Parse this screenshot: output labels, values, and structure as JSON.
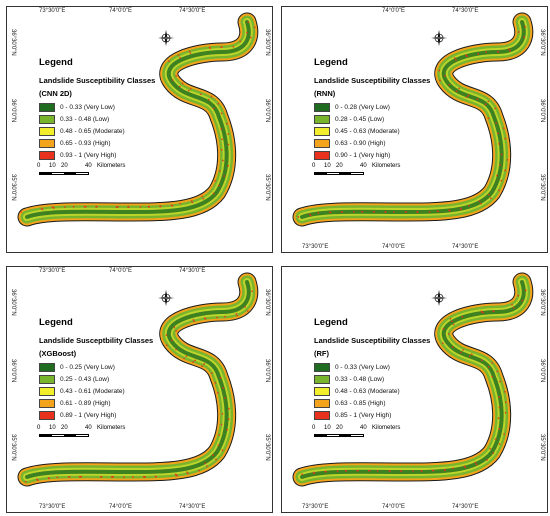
{
  "map_style": {
    "colors": {
      "very_low": "#1f6b1f",
      "low": "#79b52c",
      "moderate": "#f2ee2b",
      "high": "#f4a41c",
      "very_high": "#e8321e",
      "outline": "#1a1a1a"
    }
  },
  "compass": {
    "icon": "north-arrow-compass-icon",
    "label": "N"
  },
  "panels": [
    {
      "legend_title": "Legend",
      "legend_subtitle": "Landslide Susceptibility Classes",
      "model": "(CNN 2D)",
      "classes": [
        {
          "label": "0 - 0.33 (Very Low)",
          "color": "#1f6b1f"
        },
        {
          "label": "0.33 - 0.48 (Low)",
          "color": "#79b52c"
        },
        {
          "label": "0.48 - 0.65 (Moderate)",
          "color": "#f2ee2b"
        },
        {
          "label": "0.65 - 0.93 (High)",
          "color": "#f4a41c"
        },
        {
          "label": "0.93 - 1 (Very High)",
          "color": "#e8321e"
        }
      ],
      "scale": {
        "ticks": [
          "0",
          "10",
          "20",
          "40"
        ],
        "unit": "Kilometers"
      },
      "top_ticks": [
        "73°30'0\"E",
        "74°0'0\"E",
        "74°30'0\"E"
      ],
      "right_ticks": [
        "36°30'0\"N",
        "36°0'0\"N",
        "35°30'0\"N"
      ],
      "left_ticks": [
        "36°30'0\"N",
        "36°0'0\"N",
        "35°30'0\"N"
      ],
      "bottom_ticks": []
    },
    {
      "legend_title": "Legend",
      "legend_subtitle": "Landslide Susceptibility Classes",
      "model": "(RNN)",
      "classes": [
        {
          "label": "0 - 0.28 (Very Low)",
          "color": "#1f6b1f"
        },
        {
          "label": "0.28 - 0.45 (Low)",
          "color": "#79b52c"
        },
        {
          "label": "0.45 - 0.63 (Moderate)",
          "color": "#f2ee2b"
        },
        {
          "label": "0.63 - 0.90 (High)",
          "color": "#f4a41c"
        },
        {
          "label": "0.90 - 1 (Very high)",
          "color": "#e8321e"
        }
      ],
      "scale": {
        "ticks": [
          "0",
          "10",
          "20",
          "40"
        ],
        "unit": "Kilometers"
      },
      "top_ticks": [
        "74°0'0\"E",
        "74°30'0\"E"
      ],
      "right_ticks": [
        "36°30'0\"N",
        "36°0'0\"N",
        "35°30'0\"N"
      ],
      "left_ticks": [],
      "bottom_ticks": [
        "73°30'0\"E",
        "74°0'0\"E",
        "74°30'0\"E"
      ]
    },
    {
      "legend_title": "Legend",
      "legend_subtitle": "Landslide Susceptbility Classes",
      "model": "(XGBoost)",
      "classes": [
        {
          "label": "0 - 0.25 (Very Low)",
          "color": "#1f6b1f"
        },
        {
          "label": "0.25 - 0.43 (Low)",
          "color": "#79b52c"
        },
        {
          "label": "0.43 - 0.61 (Moderate)",
          "color": "#f2ee2b"
        },
        {
          "label": "0.61 - 0.89 (High)",
          "color": "#f4a41c"
        },
        {
          "label": "0.89 - 1 (Very High)",
          "color": "#e8321e"
        }
      ],
      "scale": {
        "ticks": [
          "0",
          "10",
          "20",
          "40"
        ],
        "unit": "Kilometers"
      },
      "top_ticks": [
        "73°30'0\"E",
        "74°0'0\"E",
        "74°30'0\"E"
      ],
      "right_ticks": [
        "36°30'0\"N",
        "36°0'0\"N",
        "35°30'0\"N"
      ],
      "left_ticks": [
        "36°30'0\"N",
        "36°0'0\"N",
        "35°30'0\"N"
      ],
      "bottom_ticks": [
        "73°30'0\"E",
        "74°0'0\"E",
        "74°30'0\"E"
      ]
    },
    {
      "legend_title": "Legend",
      "legend_subtitle": "Landslide Susceptibility Classes",
      "model": "(RF)",
      "classes": [
        {
          "label": "0 - 0.33 (Very Low)",
          "color": "#1f6b1f"
        },
        {
          "label": "0.33 - 0.48 (Low)",
          "color": "#79b52c"
        },
        {
          "label": "0.48 - 0.63 (Moderate)",
          "color": "#f2ee2b"
        },
        {
          "label": "0.63 - 0.85 (High)",
          "color": "#f4a41c"
        },
        {
          "label": "0.85 - 1 (Very High)",
          "color": "#e8321e"
        }
      ],
      "scale": {
        "ticks": [
          "0",
          "10",
          "20",
          "40"
        ],
        "unit": "Kilometers"
      },
      "top_ticks": [],
      "right_ticks": [
        "36°30'0\"N",
        "36°0'0\"N",
        "35°30'0\"N"
      ],
      "left_ticks": [],
      "bottom_ticks": [
        "73°30'0\"E",
        "74°0'0\"E",
        "74°30'0\"E"
      ]
    }
  ]
}
